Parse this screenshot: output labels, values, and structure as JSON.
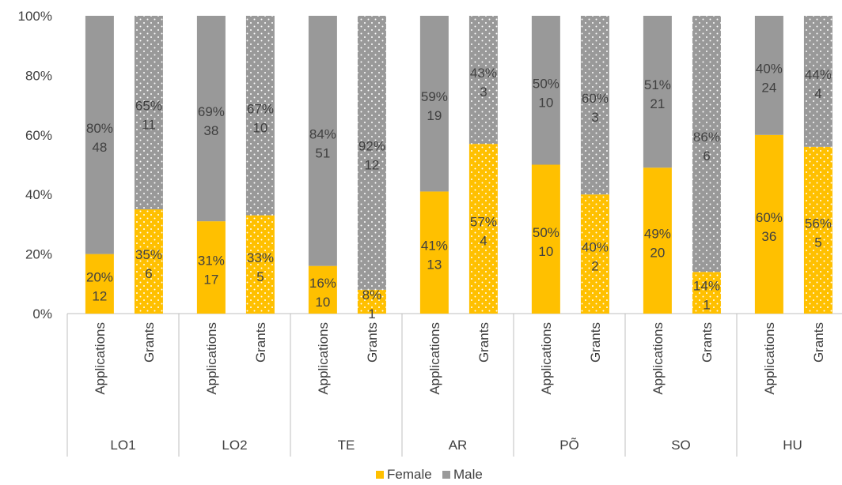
{
  "chart_data": {
    "type": "bar",
    "stacked": true,
    "percent": true,
    "ylim": [
      0,
      100
    ],
    "yticks": [
      "0%",
      "20%",
      "40%",
      "60%",
      "80%",
      "100%"
    ],
    "legend": {
      "position": "bottom",
      "entries": [
        "Female",
        "Male"
      ]
    },
    "colors": {
      "Female": "#FFC000",
      "Male": "#999999"
    },
    "groups": [
      {
        "name": "LO1",
        "bars": [
          {
            "label": "Applications",
            "pattern": "solid",
            "female": {
              "pct": 20,
              "count": 12
            },
            "male": {
              "pct": 80,
              "count": 48
            }
          },
          {
            "label": "Grants",
            "pattern": "dotted",
            "female": {
              "pct": 35,
              "count": 6
            },
            "male": {
              "pct": 65,
              "count": 11
            }
          }
        ]
      },
      {
        "name": "LO2",
        "bars": [
          {
            "label": "Applications",
            "pattern": "solid",
            "female": {
              "pct": 31,
              "count": 17
            },
            "male": {
              "pct": 69,
              "count": 38
            }
          },
          {
            "label": "Grants",
            "pattern": "dotted",
            "female": {
              "pct": 33,
              "count": 5
            },
            "male": {
              "pct": 67,
              "count": 10
            }
          }
        ]
      },
      {
        "name": "TE",
        "bars": [
          {
            "label": "Applications",
            "pattern": "solid",
            "female": {
              "pct": 16,
              "count": 10
            },
            "male": {
              "pct": 84,
              "count": 51
            }
          },
          {
            "label": "Grants",
            "pattern": "dotted",
            "female": {
              "pct": 8,
              "count": 1
            },
            "male": {
              "pct": 92,
              "count": 12
            }
          }
        ]
      },
      {
        "name": "AR",
        "bars": [
          {
            "label": "Applications",
            "pattern": "solid",
            "female": {
              "pct": 41,
              "count": 13
            },
            "male": {
              "pct": 59,
              "count": 19
            }
          },
          {
            "label": "Grants",
            "pattern": "dotted",
            "female": {
              "pct": 57,
              "count": 4
            },
            "male": {
              "pct": 43,
              "count": 3
            }
          }
        ]
      },
      {
        "name": "PÕ",
        "bars": [
          {
            "label": "Applications",
            "pattern": "solid",
            "female": {
              "pct": 50,
              "count": 10
            },
            "male": {
              "pct": 50,
              "count": 10
            }
          },
          {
            "label": "Grants",
            "pattern": "dotted",
            "female": {
              "pct": 40,
              "count": 2
            },
            "male": {
              "pct": 60,
              "count": 3
            }
          }
        ]
      },
      {
        "name": "SO",
        "bars": [
          {
            "label": "Applications",
            "pattern": "solid",
            "female": {
              "pct": 49,
              "count": 20
            },
            "male": {
              "pct": 51,
              "count": 21
            }
          },
          {
            "label": "Grants",
            "pattern": "dotted",
            "female": {
              "pct": 14,
              "count": 1
            },
            "male": {
              "pct": 86,
              "count": 6
            }
          }
        ]
      },
      {
        "name": "HU",
        "bars": [
          {
            "label": "Applications",
            "pattern": "solid",
            "female": {
              "pct": 60,
              "count": 36
            },
            "male": {
              "pct": 40,
              "count": 24
            }
          },
          {
            "label": "Grants",
            "pattern": "dotted",
            "female": {
              "pct": 56,
              "count": 5
            },
            "male": {
              "pct": 44,
              "count": 4
            }
          }
        ]
      }
    ]
  }
}
